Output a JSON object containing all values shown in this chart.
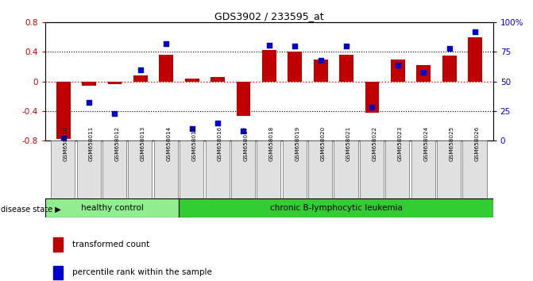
{
  "title": "GDS3902 / 233595_at",
  "samples": [
    "GSM658010",
    "GSM658011",
    "GSM658012",
    "GSM658013",
    "GSM658014",
    "GSM658015",
    "GSM658016",
    "GSM658017",
    "GSM658018",
    "GSM658019",
    "GSM658020",
    "GSM658021",
    "GSM658022",
    "GSM658023",
    "GSM658024",
    "GSM658025",
    "GSM658026"
  ],
  "bar_values": [
    -0.78,
    -0.06,
    -0.04,
    0.08,
    0.36,
    0.04,
    0.06,
    -0.47,
    0.43,
    0.4,
    0.3,
    0.36,
    -0.42,
    0.3,
    0.22,
    0.35,
    0.6
  ],
  "dot_values": [
    2,
    32,
    23,
    60,
    82,
    10,
    15,
    8,
    81,
    80,
    68,
    80,
    28,
    64,
    58,
    78,
    92
  ],
  "ylim_left": [
    -0.8,
    0.8
  ],
  "ylim_right": [
    0,
    100
  ],
  "yticks_left": [
    -0.8,
    -0.4,
    0.0,
    0.4,
    0.8
  ],
  "yticks_right": [
    0,
    25,
    50,
    75,
    100
  ],
  "bar_color": "#C00000",
  "dot_color": "#0000CC",
  "healthy_count": 5,
  "healthy_label": "healthy control",
  "leukemia_label": "chronic B-lymphocytic leukemia",
  "legend_bar": "transformed count",
  "legend_dot": "percentile rank within the sample",
  "disease_state_label": "disease state",
  "hline_color": "#FF0000",
  "healthy_bg": "#90EE90",
  "leukemia_bg": "#33CC33"
}
